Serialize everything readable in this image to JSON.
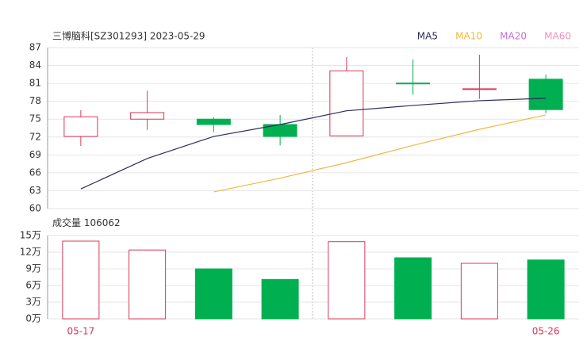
{
  "chart_data": [
    {
      "type": "candlestick",
      "title": "三博脑科[SZ301293] 2023-05-29",
      "categories": [
        "05-17",
        null,
        null,
        null,
        null,
        null,
        null,
        "05-26"
      ],
      "open": [
        72.1,
        75.0,
        75.0,
        74.1,
        72.2,
        81.05,
        80.0,
        81.7
      ],
      "close": [
        75.4,
        76.1,
        74.1,
        72.1,
        83.1,
        81.0,
        80.1,
        76.6
      ],
      "high": [
        76.5,
        79.8,
        75.3,
        75.7,
        85.4,
        85.0,
        85.8,
        82.5
      ],
      "low": [
        70.5,
        73.2,
        72.8,
        70.6,
        72.2,
        79.1,
        78.4,
        76.0
      ],
      "up_color": "#d9385a",
      "down_color": "#00b050",
      "series": [
        {
          "name": "MA5",
          "color": "#2c2c5e",
          "values": [
            63.3,
            68.4,
            72.1,
            74.1,
            76.4,
            77.3,
            78.1,
            78.5
          ]
        },
        {
          "name": "MA10",
          "color": "#f0b840",
          "values": [
            null,
            null,
            62.8,
            65.1,
            67.7,
            70.6,
            73.3,
            75.7
          ]
        },
        {
          "name": "MA20",
          "color": "#c070d0",
          "values": [
            null,
            null,
            null,
            null,
            null,
            null,
            null,
            null
          ]
        },
        {
          "name": "MA60",
          "color": "#f090c0",
          "values": [
            null,
            null,
            null,
            null,
            null,
            null,
            null,
            null
          ]
        }
      ],
      "ylim": [
        60,
        87
      ],
      "yticks": [
        60,
        63,
        66,
        69,
        72,
        75,
        78,
        81,
        84,
        87
      ],
      "grid": true
    },
    {
      "type": "bar",
      "title": "成交量",
      "values": [
        140000,
        124000,
        90000,
        71000,
        139000,
        110000,
        100000,
        106062
      ],
      "ylim": [
        0,
        150000
      ],
      "yticks": [
        {
          "value": 0,
          "label": "0万"
        },
        {
          "value": 30000,
          "label": "3万"
        },
        {
          "value": 60000,
          "label": "6万"
        },
        {
          "value": 90000,
          "label": "9万"
        },
        {
          "value": 120000,
          "label": "12万"
        },
        {
          "value": 150000,
          "label": "15万"
        }
      ],
      "grid": true
    }
  ]
}
